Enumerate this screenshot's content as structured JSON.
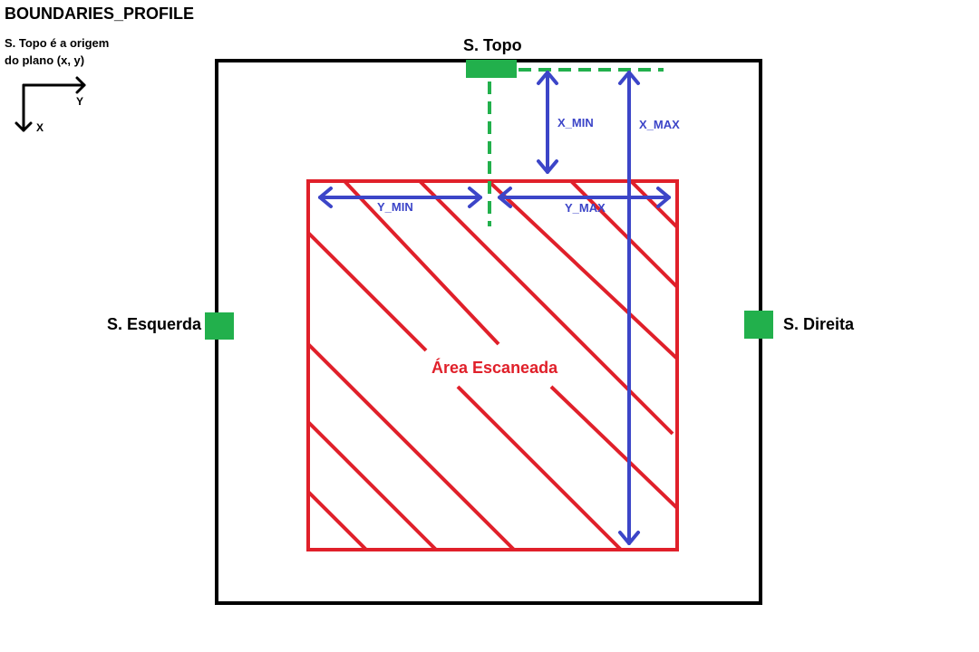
{
  "title": "BOUNDARIES_PROFILE",
  "origin_note": {
    "line1": "S. Topo é a origem",
    "line2": "do plano (x, y)"
  },
  "axes": {
    "y_label": "Y",
    "x_label": "X"
  },
  "sensors": {
    "top": "S. Topo",
    "left": "S. Esquerda",
    "right": "S. Direita"
  },
  "scan_area_label": "Área Escaneada",
  "bounds": {
    "x_min": "X_MIN",
    "x_max": "X_MAX",
    "y_min": "Y_MIN",
    "y_max": "Y_MAX"
  },
  "colors": {
    "sensor": "#22b04c",
    "scan_area": "#e0202a",
    "bounds_arrows": "#3c45c8",
    "frame": "#000000"
  }
}
